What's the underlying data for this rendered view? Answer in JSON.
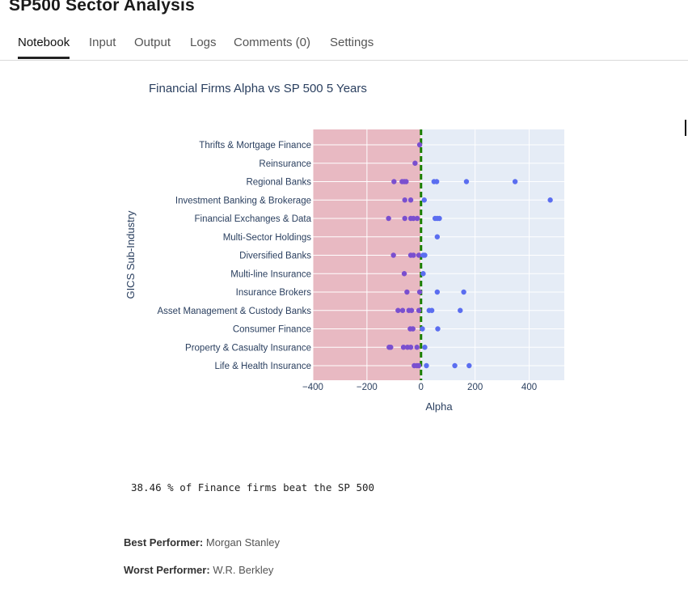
{
  "page": {
    "title": "SP500 Sector Analysis",
    "tabs": [
      {
        "label": "Notebook",
        "active": true
      },
      {
        "label": "Input",
        "active": false
      },
      {
        "label": "Output",
        "active": false
      },
      {
        "label": "Logs",
        "active": false
      },
      {
        "label": "Comments (0)",
        "active": false
      },
      {
        "label": "Settings",
        "active": false
      }
    ]
  },
  "chart_data": {
    "type": "scatter",
    "title": "Financial Firms Alpha vs SP 500 5 Years",
    "xlabel": "Alpha",
    "ylabel": "GICS Sub-Industry",
    "xlim": [
      -400,
      530
    ],
    "x_ticks": [
      -400,
      -200,
      0,
      200,
      400
    ],
    "x_tick_labels": [
      "−400",
      "−200",
      "0",
      "200",
      "400"
    ],
    "grid": true,
    "negative_region_color": "#e8b9c2",
    "background_color": "#e5ecf6",
    "reference_line": {
      "x": 0,
      "color": "#1a7f00",
      "style": "dashed"
    },
    "point_colors": {
      "negative": "#7a4fcf",
      "positive": "#5b6ef0"
    },
    "categories": [
      "Thrifts & Mortgage Finance",
      "Reinsurance",
      "Regional Banks",
      "Investment Banking & Brokerage",
      "Financial Exchanges & Data",
      "Multi-Sector Holdings",
      "Diversified Banks",
      "Multi-line Insurance",
      "Insurance Brokers",
      "Asset Management & Custody Banks",
      "Consumer Finance",
      "Property & Casualty Insurance",
      "Life & Health Insurance"
    ],
    "points": [
      {
        "category": "Thrifts & Mortgage Finance",
        "x": -5
      },
      {
        "category": "Reinsurance",
        "x": -22
      },
      {
        "category": "Regional Banks",
        "x": -100
      },
      {
        "category": "Regional Banks",
        "x": -70
      },
      {
        "category": "Regional Banks",
        "x": -62
      },
      {
        "category": "Regional Banks",
        "x": -55
      },
      {
        "category": "Regional Banks",
        "x": 48
      },
      {
        "category": "Regional Banks",
        "x": 58
      },
      {
        "category": "Regional Banks",
        "x": 168
      },
      {
        "category": "Regional Banks",
        "x": 348
      },
      {
        "category": "Investment Banking & Brokerage",
        "x": -60
      },
      {
        "category": "Investment Banking & Brokerage",
        "x": -38
      },
      {
        "category": "Investment Banking & Brokerage",
        "x": 12
      },
      {
        "category": "Investment Banking & Brokerage",
        "x": 478
      },
      {
        "category": "Financial Exchanges & Data",
        "x": -120
      },
      {
        "category": "Financial Exchanges & Data",
        "x": -60
      },
      {
        "category": "Financial Exchanges & Data",
        "x": -38
      },
      {
        "category": "Financial Exchanges & Data",
        "x": -28
      },
      {
        "category": "Financial Exchanges & Data",
        "x": -14
      },
      {
        "category": "Financial Exchanges & Data",
        "x": 52
      },
      {
        "category": "Financial Exchanges & Data",
        "x": 60
      },
      {
        "category": "Financial Exchanges & Data",
        "x": 68
      },
      {
        "category": "Multi-Sector Holdings",
        "x": 60
      },
      {
        "category": "Diversified Banks",
        "x": -102
      },
      {
        "category": "Diversified Banks",
        "x": -38
      },
      {
        "category": "Diversified Banks",
        "x": -28
      },
      {
        "category": "Diversified Banks",
        "x": -8
      },
      {
        "category": "Diversified Banks",
        "x": 8
      },
      {
        "category": "Diversified Banks",
        "x": 14
      },
      {
        "category": "Multi-line Insurance",
        "x": -62
      },
      {
        "category": "Multi-line Insurance",
        "x": 8
      },
      {
        "category": "Insurance Brokers",
        "x": -52
      },
      {
        "category": "Insurance Brokers",
        "x": -5
      },
      {
        "category": "Insurance Brokers",
        "x": 60
      },
      {
        "category": "Insurance Brokers",
        "x": 158
      },
      {
        "category": "Asset Management & Custody Banks",
        "x": -85
      },
      {
        "category": "Asset Management & Custody Banks",
        "x": -68
      },
      {
        "category": "Asset Management & Custody Banks",
        "x": -45
      },
      {
        "category": "Asset Management & Custody Banks",
        "x": -35
      },
      {
        "category": "Asset Management & Custody Banks",
        "x": -8
      },
      {
        "category": "Asset Management & Custody Banks",
        "x": 30
      },
      {
        "category": "Asset Management & Custody Banks",
        "x": 40
      },
      {
        "category": "Asset Management & Custody Banks",
        "x": 145
      },
      {
        "category": "Consumer Finance",
        "x": -40
      },
      {
        "category": "Consumer Finance",
        "x": -30
      },
      {
        "category": "Consumer Finance",
        "x": 5
      },
      {
        "category": "Consumer Finance",
        "x": 62
      },
      {
        "category": "Property & Casualty Insurance",
        "x": -118
      },
      {
        "category": "Property & Casualty Insurance",
        "x": -112
      },
      {
        "category": "Property & Casualty Insurance",
        "x": -65
      },
      {
        "category": "Property & Casualty Insurance",
        "x": -50
      },
      {
        "category": "Property & Casualty Insurance",
        "x": -38
      },
      {
        "category": "Property & Casualty Insurance",
        "x": -15
      },
      {
        "category": "Property & Casualty Insurance",
        "x": 14
      },
      {
        "category": "Life & Health Insurance",
        "x": -25
      },
      {
        "category": "Life & Health Insurance",
        "x": -15
      },
      {
        "category": "Life & Health Insurance",
        "x": -8
      },
      {
        "category": "Life & Health Insurance",
        "x": 20
      },
      {
        "category": "Life & Health Insurance",
        "x": 125
      },
      {
        "category": "Life & Health Insurance",
        "x": 178
      }
    ]
  },
  "output": {
    "summary": "38.46 % of Finance firms beat the SP 500",
    "best_label": "Best Performer:",
    "best_value": "Morgan Stanley",
    "worst_label": "Worst Performer:",
    "worst_value": "W.R. Berkley"
  }
}
